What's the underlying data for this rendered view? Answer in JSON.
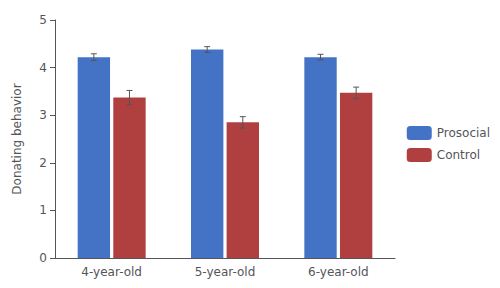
{
  "chart_data": {
    "type": "bar",
    "categories": [
      "4-year-old",
      "5-year-old",
      "6-year-old"
    ],
    "series": [
      {
        "name": "Prosocial",
        "color": "#4472C4",
        "values": [
          4.22,
          4.38,
          4.22
        ],
        "errors": [
          0.07,
          0.06,
          0.06
        ]
      },
      {
        "name": "Control",
        "color": "#B04040",
        "values": [
          3.37,
          2.85,
          3.47
        ],
        "errors": [
          0.15,
          0.12,
          0.12
        ]
      }
    ],
    "ylabel": "Donating behavior",
    "ylim": [
      0,
      5
    ],
    "yticks": [
      0,
      1,
      2,
      3,
      4,
      5
    ],
    "grid": false,
    "legend": "right"
  }
}
